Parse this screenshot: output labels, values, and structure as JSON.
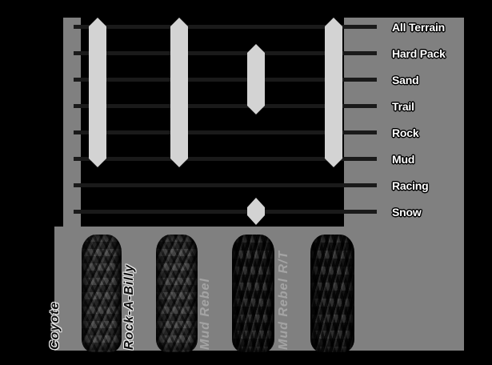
{
  "chart_data": {
    "type": "bar",
    "variant": "terrain-coverage-range-bars",
    "title": "",
    "categories": [
      "All Terrain",
      "Hard Pack",
      "Sand",
      "Trail",
      "Rock",
      "Mud",
      "Racing",
      "Snow"
    ],
    "series": [
      {
        "name": "Coyote",
        "covered": [
          "All Terrain",
          "Hard Pack",
          "Sand",
          "Trail",
          "Rock",
          "Mud"
        ]
      },
      {
        "name": "Rock-A-Billy",
        "covered": [
          "All Terrain",
          "Hard Pack",
          "Sand",
          "Trail",
          "Rock",
          "Mud"
        ]
      },
      {
        "name": "Mud Rebel",
        "covered": [
          "Hard Pack",
          "Sand",
          "Trail",
          "Snow"
        ]
      },
      {
        "name": "Mud Rebel R/T",
        "covered": [
          "All Terrain",
          "Hard Pack",
          "Sand",
          "Trail",
          "Rock",
          "Mud"
        ]
      }
    ],
    "legend_position": "category labels on right panel",
    "grid": "horizontal lines, one per category"
  },
  "colors": {
    "background": "#000000",
    "panel_gray": "#808080",
    "bar_fill": "#d3d3d3",
    "grid_line": "#1a1a1a",
    "terrain_label_text": "#ffffff",
    "tire_label_outlined_text": "#101010",
    "tire_label_ghost_text": "#a4a4a4"
  }
}
